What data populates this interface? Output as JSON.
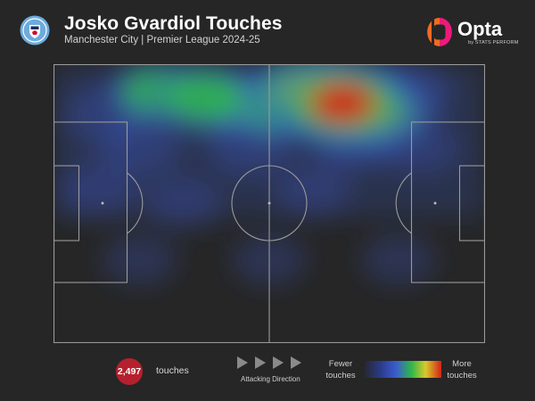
{
  "header": {
    "title": "Josko Gvardiol Touches",
    "subtitle": "Manchester City | Premier League 2024-25",
    "club_badge_icon": "manchester-city-crest-icon",
    "brand": {
      "name": "Opta",
      "tagline": "by STATS PERFORM",
      "icon": "opta-logo-icon"
    }
  },
  "chart_data": {
    "type": "heatmap",
    "title": "Josko Gvardiol Touches",
    "subtitle": "Manchester City | Premier League 2024-25",
    "pitch": {
      "length": 100,
      "width": 100,
      "attacking_direction": "left-to-right"
    },
    "x_range": [
      0,
      100
    ],
    "y_range": [
      0,
      100
    ],
    "grid": false,
    "colors": {
      "fewer": "#3b5bd0",
      "mid": "#2fb84a",
      "high": "#d9c92a",
      "more": "#d42219"
    },
    "hotspots": [
      {
        "x": 35,
        "y": 88,
        "intensity": 0.55
      },
      {
        "x": 24,
        "y": 90,
        "intensity": 0.45
      },
      {
        "x": 44,
        "y": 86,
        "intensity": 0.4
      },
      {
        "x": 67,
        "y": 86,
        "intensity": 1.0
      },
      {
        "x": 59,
        "y": 90,
        "intensity": 0.75
      },
      {
        "x": 74,
        "y": 83,
        "intensity": 0.7
      },
      {
        "x": 52,
        "y": 84,
        "intensity": 0.45
      },
      {
        "x": 12,
        "y": 82,
        "intensity": 0.2
      },
      {
        "x": 82,
        "y": 90,
        "intensity": 0.25
      },
      {
        "x": 20,
        "y": 70,
        "intensity": 0.18
      },
      {
        "x": 45,
        "y": 70,
        "intensity": 0.18
      },
      {
        "x": 70,
        "y": 72,
        "intensity": 0.18
      },
      {
        "x": 10,
        "y": 55,
        "intensity": 0.1
      },
      {
        "x": 30,
        "y": 50,
        "intensity": 0.08
      },
      {
        "x": 60,
        "y": 55,
        "intensity": 0.08
      },
      {
        "x": 85,
        "y": 70,
        "intensity": 0.1
      },
      {
        "x": 20,
        "y": 30,
        "intensity": 0.05
      },
      {
        "x": 50,
        "y": 30,
        "intensity": 0.04
      },
      {
        "x": 80,
        "y": 30,
        "intensity": 0.04
      }
    ],
    "total_touches": "2,497",
    "touches_label": "touches",
    "legend": {
      "fewer_line1": "Fewer",
      "fewer_line2": "touches",
      "more_line1": "More",
      "more_line2": "touches",
      "placement": "bottom"
    },
    "attacking_direction_label": "Attacking Direction"
  }
}
